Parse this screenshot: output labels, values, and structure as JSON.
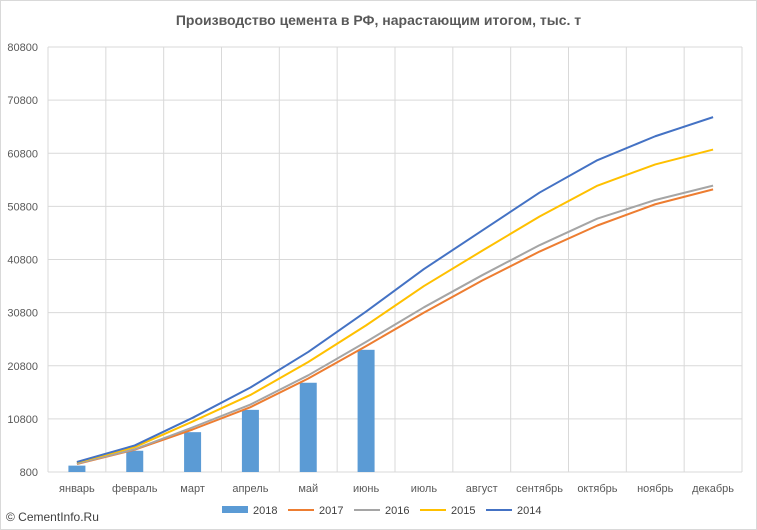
{
  "source_label": "© CementInfo.Ru",
  "chart_data": {
    "type": "bar",
    "title": "Производство цемента в РФ, нарастающим итогом, тыс. т",
    "xlabel": "",
    "ylabel": "",
    "ylim": [
      800,
      80800
    ],
    "yticks": [
      800,
      10800,
      20800,
      30800,
      40800,
      50800,
      60800,
      70800,
      80800
    ],
    "grid": true,
    "legend_position": "bottom",
    "categories": [
      "январь",
      "февраль",
      "март",
      "апрель",
      "май",
      "июнь",
      "июль",
      "август",
      "сентябрь",
      "октябрь",
      "ноябрь",
      "декабрь"
    ],
    "series": [
      {
        "name": "2018",
        "type": "bar",
        "color": "#5b9bd5",
        "values": [
          2000,
          4800,
          8300,
          12500,
          17600,
          23800,
          null,
          null,
          null,
          null,
          null,
          null
        ]
      },
      {
        "name": "2017",
        "type": "line",
        "color": "#ed7d31",
        "values": [
          2300,
          5000,
          8800,
          13000,
          18400,
          24500,
          30800,
          36800,
          42300,
          47200,
          51200,
          54000
        ]
      },
      {
        "name": "2016",
        "type": "line",
        "color": "#a5a5a5",
        "values": [
          2400,
          5100,
          9200,
          13500,
          19000,
          25300,
          31800,
          37800,
          43500,
          48500,
          52000,
          54700
        ]
      },
      {
        "name": "2015",
        "type": "line",
        "color": "#ffc000",
        "values": [
          2600,
          5500,
          10300,
          15300,
          21500,
          28400,
          35800,
          42400,
          48900,
          54700,
          58700,
          61500
        ]
      },
      {
        "name": "2014",
        "type": "line",
        "color": "#4472c4",
        "values": [
          2700,
          5800,
          11000,
          16700,
          23400,
          31000,
          39000,
          46200,
          53400,
          59500,
          64000,
          67600
        ]
      }
    ]
  }
}
